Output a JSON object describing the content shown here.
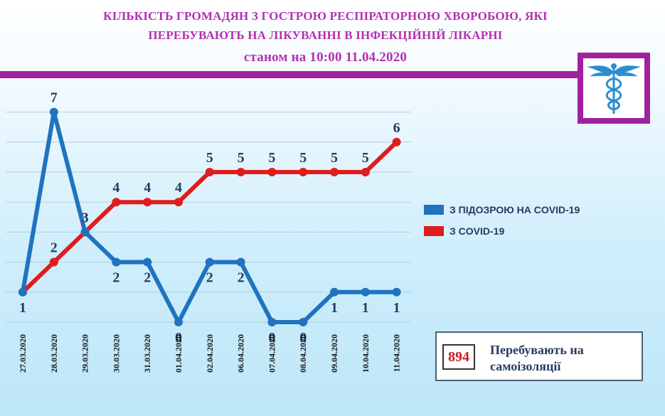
{
  "header": {
    "title_line1": "КІЛЬКІСТЬ ГРОМАДЯН З ГОСТРОЮ РЕСПІРАТОРНОЮ ХВОРОБОЮ, ЯКІ",
    "title_line2": "ПЕРЕБУВАЮТЬ НА ЛІКУВАННІ В ІНФЕКЦІЙНІЙ ЛІКАРНІ",
    "title_line3": "станом на 10:00 11.04.2020"
  },
  "colors": {
    "accent": "#a020a0",
    "title": "#b52fb3",
    "series_suspected": "#1f73c0",
    "series_covid": "#e01c1c",
    "grid": "#9cc3d5",
    "label_text": "#2a3a60"
  },
  "logo": {
    "icon": "caduceus-icon"
  },
  "chart_data": {
    "type": "line",
    "x": [
      "27.03.2020",
      "28.03.2020",
      "29.03.2020",
      "30.03.2020",
      "31.03.2020",
      "01.04.2020",
      "02.04.2020",
      "06.04.2020",
      "07.04.2020",
      "08.04.2020",
      "09.04.2020",
      "10.04.2020",
      "11.04.2020"
    ],
    "series": [
      {
        "name": "З ПІДОЗРОЮ НА COVID-19",
        "color": "#1f73c0",
        "values": [
          1,
          7,
          3,
          2,
          2,
          0,
          2,
          2,
          0,
          0,
          1,
          1,
          1
        ]
      },
      {
        "name": "З COVID-19",
        "color": "#e01c1c",
        "values": [
          1,
          2,
          3,
          4,
          4,
          4,
          5,
          5,
          5,
          5,
          5,
          5,
          6
        ]
      }
    ],
    "data_labels": [
      [
        "1",
        "7",
        "3",
        "2",
        "2",
        "0",
        "2",
        "2",
        "0",
        "0",
        "1",
        "1",
        "1"
      ],
      [
        "",
        "2",
        "3",
        "4",
        "4",
        "4",
        "5",
        "5",
        "5",
        "5",
        "5",
        "5",
        "6"
      ]
    ],
    "ylim": [
      0,
      7.4
    ],
    "grid": true,
    "legend_position": "right"
  },
  "info": {
    "count": "894",
    "label_line1": "Перебувають на",
    "label_line2": "самоізоляції"
  }
}
